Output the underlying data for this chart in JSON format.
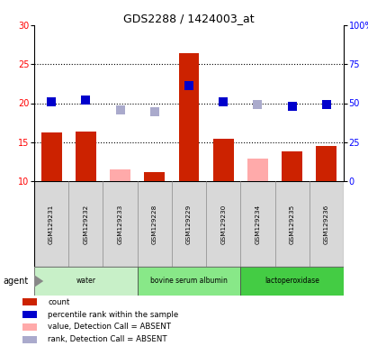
{
  "title": "GDS2288 / 1424003_at",
  "samples": [
    "GSM129231",
    "GSM129232",
    "GSM129233",
    "GSM129228",
    "GSM129229",
    "GSM129230",
    "GSM129234",
    "GSM129235",
    "GSM129236"
  ],
  "count_values": [
    16.2,
    16.4,
    null,
    11.1,
    26.4,
    15.4,
    null,
    13.8,
    14.5
  ],
  "count_absent": [
    null,
    null,
    11.5,
    null,
    null,
    null,
    12.9,
    null,
    null
  ],
  "rank_values": [
    20.2,
    20.4,
    null,
    null,
    22.2,
    20.2,
    null,
    19.6,
    19.8
  ],
  "rank_absent": [
    null,
    null,
    19.1,
    18.9,
    null,
    null,
    19.8,
    null,
    null
  ],
  "ylim": [
    10,
    30
  ],
  "yticks": [
    10,
    15,
    20,
    25,
    30
  ],
  "y2lim": [
    0,
    100
  ],
  "y2ticks": [
    0,
    25,
    50,
    75,
    100
  ],
  "group_labels": [
    "water",
    "bovine serum albumin",
    "lactoperoxidase"
  ],
  "group_starts": [
    0,
    3,
    6
  ],
  "group_ends": [
    3,
    6,
    9
  ],
  "group_colors": [
    "#c8f0c8",
    "#88e888",
    "#44cc44"
  ],
  "bar_color_present": "#cc2200",
  "bar_color_absent": "#ffaaaa",
  "rank_color_present": "#0000cc",
  "rank_color_absent": "#aaaacc",
  "rank_marker_size": 55,
  "bar_width": 0.6,
  "legend_items": [
    {
      "color": "#cc2200",
      "label": "count"
    },
    {
      "color": "#0000cc",
      "label": "percentile rank within the sample"
    },
    {
      "color": "#ffaaaa",
      "label": "value, Detection Call = ABSENT"
    },
    {
      "color": "#aaaacc",
      "label": "rank, Detection Call = ABSENT"
    }
  ],
  "agent_label": "agent"
}
